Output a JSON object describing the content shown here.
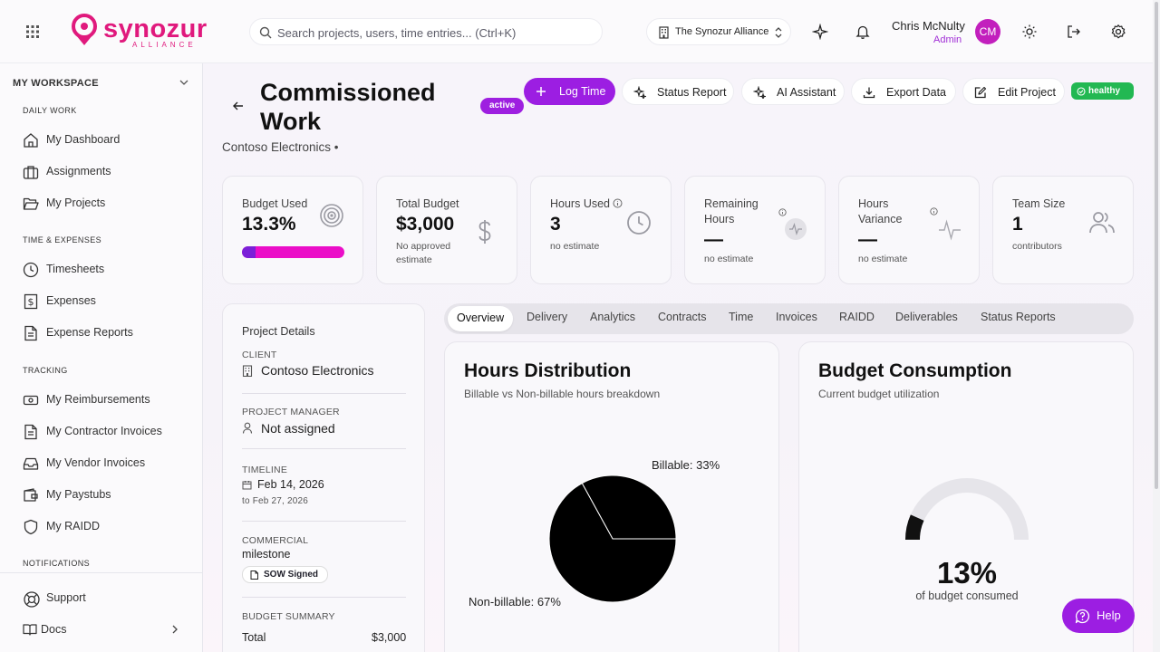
{
  "header": {
    "logo_text": "synozur",
    "logo_sub": "ALLIANCE",
    "search_placeholder": "Search projects, users, time entries... (Ctrl+K)",
    "org": "The Synozur Alliance",
    "user_name": "Chris McNulty",
    "user_role": "Admin",
    "avatar_initials": "CM"
  },
  "sidebar": {
    "workspace_title": "MY WORKSPACE",
    "sections": {
      "daily": "DAILY WORK",
      "time": "TIME & EXPENSES",
      "tracking": "TRACKING",
      "notifications": "NOTIFICATIONS"
    },
    "items": {
      "dashboard": "My Dashboard",
      "assignments": "Assignments",
      "projects": "My Projects",
      "timesheets": "Timesheets",
      "expenses": "Expenses",
      "expense_reports": "Expense Reports",
      "reimbursements": "My Reimbursements",
      "contractor_invoices": "My Contractor Invoices",
      "vendor_invoices": "My Vendor Invoices",
      "paystubs": "My Paystubs",
      "raidd": "My RAIDD",
      "support": "Support",
      "docs": "Docs"
    }
  },
  "project": {
    "title": "Commissioned Work",
    "status": "active",
    "client_line": "Contoso Electronics •",
    "health": "healthy",
    "actions": {
      "log_time": "Log Time",
      "status_report": "Status Report",
      "ai_assistant": "AI Assistant",
      "export_data": "Export Data",
      "edit_project": "Edit Project"
    }
  },
  "kpis": {
    "budget_used": {
      "label": "Budget Used",
      "value": "13.3%",
      "percent": 13.3
    },
    "total_budget": {
      "label": "Total Budget",
      "value": "$3,000",
      "note": "No approved estimate"
    },
    "hours_used": {
      "label": "Hours Used",
      "value": "3",
      "note": "no estimate"
    },
    "remaining_hours": {
      "label": "Remaining Hours",
      "value": "—",
      "note": "no estimate"
    },
    "hours_variance": {
      "label": "Hours Variance",
      "value": "—",
      "note": "no estimate"
    },
    "team_size": {
      "label": "Team Size",
      "value": "1",
      "note": "contributors"
    }
  },
  "details": {
    "heading": "Project Details",
    "client_label": "CLIENT",
    "client": "Contoso Electronics",
    "pm_label": "PROJECT MANAGER",
    "pm": "Not assigned",
    "timeline_label": "TIMELINE",
    "start": "Feb 14, 2026",
    "end": "to Feb 27, 2026",
    "commercial_label": "COMMERCIAL",
    "commercial": "milestone",
    "sow": "SOW Signed",
    "budget_summary_label": "BUDGET SUMMARY",
    "total_label": "Total",
    "total_value": "$3,000"
  },
  "tabs": [
    "Overview",
    "Delivery",
    "Analytics",
    "Contracts",
    "Time",
    "Invoices",
    "RAIDD",
    "Deliverables",
    "Status Reports"
  ],
  "hours_card": {
    "title": "Hours Distribution",
    "subtitle": "Billable vs Non-billable hours breakdown",
    "billable_label": "Billable: 33%",
    "nonbillable_label": "Non-billable: 67%"
  },
  "budget_card": {
    "title": "Budget Consumption",
    "subtitle": "Current budget utilization",
    "value": "13%",
    "caption": "of budget consumed"
  },
  "chart_data": {
    "type": "pie",
    "categories": [
      "Billable",
      "Non-billable"
    ],
    "values": [
      33,
      67
    ],
    "title": "Hours Distribution"
  },
  "help_label": "Help",
  "colors": {
    "accent": "#9c1ee2",
    "brand": "#e0197d",
    "healthy": "#22b852"
  }
}
